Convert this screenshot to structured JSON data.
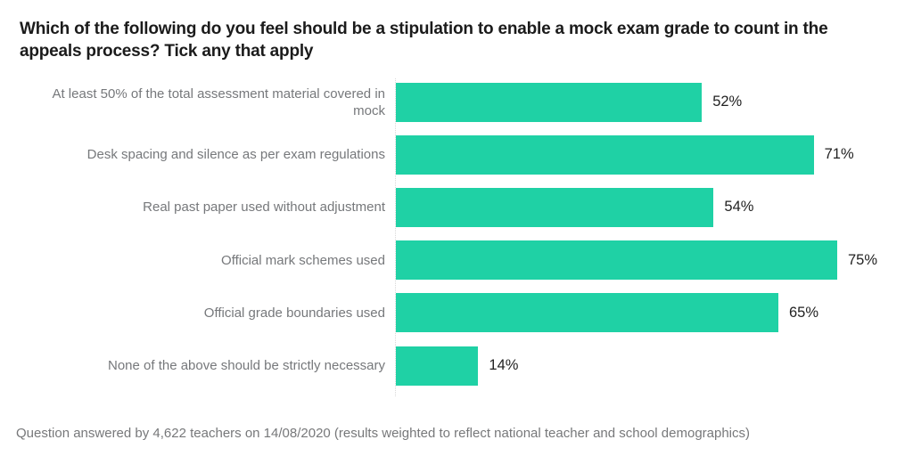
{
  "title": "Which of the following do you feel should be a stipulation to enable a mock exam grade to count in the appeals process? Tick any that apply",
  "footnote": "Question answered by 4,622 teachers on 14/08/2020 (results weighted to reflect national teacher and school demographics)",
  "colors": {
    "bar": "#1fd1a5",
    "title_text": "#1b1b1b",
    "category_label_text": "#76787b",
    "value_label_text": "#222222",
    "axis_line": "#d8d8d8",
    "background": "#ffffff"
  },
  "chart_data": {
    "type": "bar",
    "orientation": "horizontal",
    "title": "Which of the following do you feel should be a stipulation to enable a mock exam grade to count in the appeals process? Tick any that apply",
    "categories": [
      "At least 50% of the total assessment material covered in mock",
      "Desk spacing and silence as per exam regulations",
      "Real past paper used without adjustment",
      "Official mark schemes used",
      "Official grade boundaries used",
      "None of the above should be strictly necessary"
    ],
    "values": [
      52,
      71,
      54,
      75,
      65,
      14
    ],
    "value_labels": [
      "52%",
      "71%",
      "54%",
      "75%",
      "65%",
      "14%"
    ],
    "xlabel": "",
    "ylabel": "",
    "xlim": [
      0,
      100
    ],
    "unit": "%",
    "grid": false,
    "legend": false,
    "note": "Question answered by 4,622 teachers on 14/08/2020 (results weighted to reflect national teacher and school demographics)"
  }
}
